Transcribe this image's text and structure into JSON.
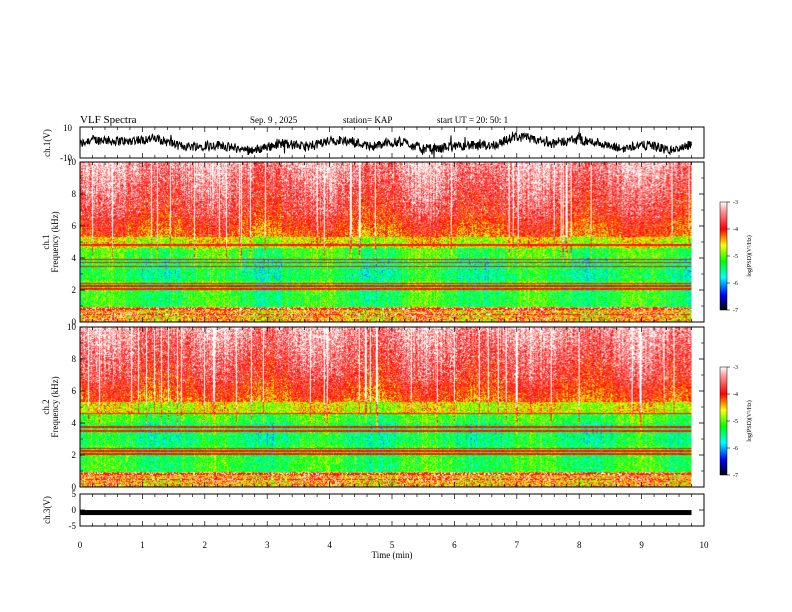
{
  "header": {
    "title": "VLF Spectra",
    "date": "Sep. 9 , 2025",
    "station": "station= KAP",
    "start": "start  UT =   20: 50: 1"
  },
  "chart_data": [
    {
      "type": "line",
      "panel": "ch1_waveform",
      "ylabel": "ch.1(V)",
      "ylim": [
        -10,
        10
      ],
      "yticks": [
        "10",
        "-10"
      ],
      "xlim": [
        0,
        10
      ],
      "note": "dense noisy black trace"
    },
    {
      "type": "heatmap",
      "panel": "ch1_spectrogram",
      "ylabel_top": "ch.1",
      "ylabel": "Frequency  (kHz)",
      "ylim": [
        0,
        10
      ],
      "yticks": [
        "0",
        "2",
        "4",
        "6",
        "8",
        "10"
      ],
      "xlim": [
        0,
        10
      ],
      "data_end_min": 9.8,
      "colorbar": {
        "label": "log(PSD)(V²/Hz)",
        "range": [
          -7,
          -3
        ],
        "ticks": [
          "-3",
          "-4",
          "-5",
          "-6",
          "-7"
        ]
      },
      "horizontal_lines_khz": [
        0.45,
        0.8,
        2.05,
        2.25,
        2.4,
        3.45,
        3.7,
        3.9,
        4.8
      ]
    },
    {
      "type": "heatmap",
      "panel": "ch2_spectrogram",
      "ylabel_top": "ch.2",
      "ylabel": "Frequency  (kHz)",
      "ylim": [
        0,
        10
      ],
      "yticks": [
        "0",
        "2",
        "4",
        "6",
        "8",
        "10"
      ],
      "xlim": [
        0,
        10
      ],
      "data_end_min": 9.8,
      "colorbar": {
        "label": "log(PSD)(V²/Hz)",
        "range": [
          -7,
          -3
        ],
        "ticks": [
          "-3",
          "-4",
          "-5",
          "-6",
          "-7"
        ]
      },
      "horizontal_lines_khz": [
        0.45,
        0.8,
        2.05,
        2.25,
        2.4,
        3.5,
        3.75,
        4.6
      ]
    },
    {
      "type": "line",
      "panel": "ch3_waveform",
      "ylabel": "ch.3(V)",
      "ylim": [
        -5,
        5
      ],
      "yticks": [
        "5",
        "0",
        "-5"
      ],
      "xlim": [
        0,
        10
      ],
      "constant_level_v": -0.8,
      "xlabel": "Time  (min)",
      "xticks": [
        "0",
        "1",
        "2",
        "3",
        "4",
        "5",
        "6",
        "7",
        "8",
        "9",
        "10"
      ]
    }
  ]
}
